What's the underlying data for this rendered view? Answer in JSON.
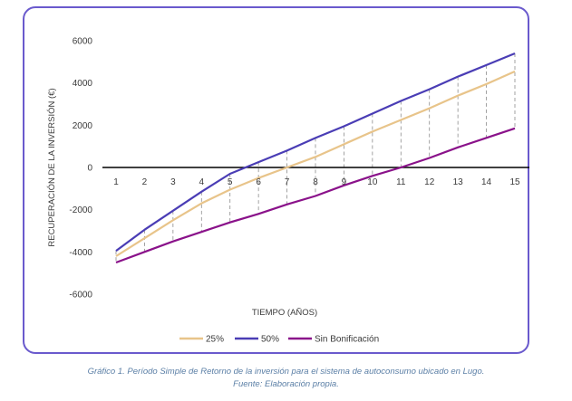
{
  "chart_data": {
    "type": "line",
    "x": [
      1,
      2,
      3,
      4,
      5,
      6,
      7,
      8,
      9,
      10,
      11,
      12,
      13,
      14,
      15
    ],
    "ylabel": "RECUPERACIÓN DE LA INVERSIÓN (€)",
    "xlabel": "TIEMPO (AÑOS)",
    "ylim": [
      -6000,
      6000
    ],
    "yticks": [
      -6000,
      -4000,
      -2000,
      0,
      2000,
      4000,
      6000
    ],
    "ytick_labels": [
      "-6000",
      "-4000",
      "-2000",
      "0",
      "2000",
      "4000",
      "6000"
    ],
    "xtick_labels": [
      "1",
      "2",
      "3",
      "4",
      "5",
      "6",
      "7",
      "8",
      "9",
      "10",
      "11",
      "12",
      "13",
      "14",
      "15"
    ],
    "grid": false,
    "legend_position": "bottom",
    "series": [
      {
        "name": "25%",
        "color": "#e8c48a",
        "values": [
          -4200,
          -3350,
          -2500,
          -1700,
          -1050,
          -500,
          0,
          500,
          1100,
          1700,
          2250,
          2800,
          3400,
          3950,
          4550
        ]
      },
      {
        "name": "50%",
        "color": "#4a3db5",
        "values": [
          -3950,
          -2950,
          -2050,
          -1150,
          -300,
          250,
          800,
          1400,
          1950,
          2550,
          3150,
          3700,
          4300,
          4850,
          5400
        ]
      },
      {
        "name": "Sin Bonificación",
        "color": "#8a128a",
        "values": [
          -4500,
          -4000,
          -3500,
          -3050,
          -2600,
          -2200,
          -1750,
          -1350,
          -850,
          -400,
          0,
          450,
          950,
          1400,
          1850
        ]
      }
    ]
  },
  "caption": {
    "line1": "Gráfico 1. Período Simple de Retorno de la inversión para el sistema de autoconsumo ubicado en Lugo.",
    "line2": "Fuente: Elaboración propia."
  }
}
